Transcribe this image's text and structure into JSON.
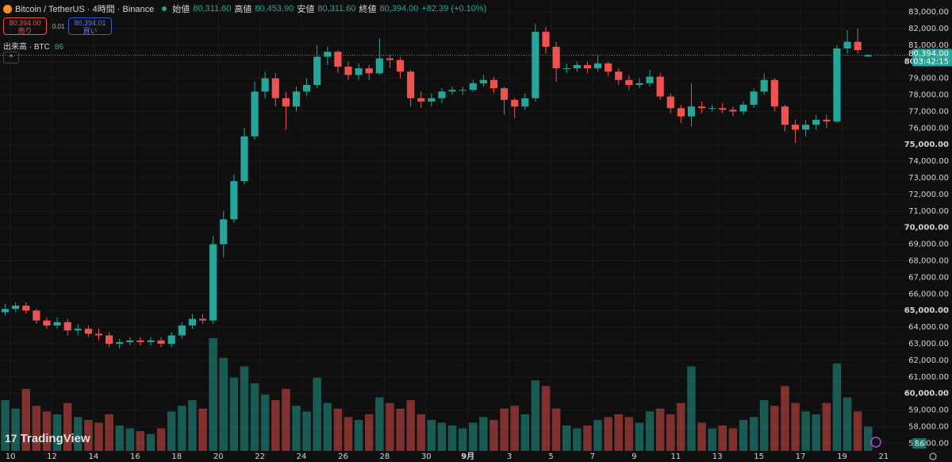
{
  "header": {
    "symbol": "Bitcoin / TetherUS · 4時間 · Binance",
    "open_label": "始値",
    "open": "80,311.60",
    "high_label": "高値",
    "high": "80,453.90",
    "low_label": "安値",
    "low": "80,311.60",
    "close_label": "終値",
    "close": "80,394.00",
    "change": "+82.39 (+0.10%)"
  },
  "order": {
    "sell_price": "80,394.00",
    "sell_label": "売り",
    "spread": "0.01",
    "buy_price": "80,394.01",
    "buy_label": "買い"
  },
  "volume_title": "出来高 · BTC",
  "logo": "TradingView",
  "chart_data": {
    "type": "candlestick",
    "up_color": "#26a69a",
    "down_color": "#ef5350",
    "open": [
      64900,
      65100,
      65300,
      65000,
      64400,
      64100,
      64300,
      63800,
      63900,
      63600,
      63500,
      63000,
      63100,
      63200,
      63100,
      63200,
      63000,
      63500,
      64100,
      64500,
      64400,
      69000,
      70500,
      72800,
      75500,
      78200,
      79000,
      77800,
      77300,
      78200,
      78600,
      80300,
      80600,
      79700,
      79200,
      79600,
      79300,
      80200,
      80100,
      79400,
      77800,
      77600,
      77800,
      78200,
      78300,
      78300,
      78700,
      78900,
      78400,
      77700,
      77300,
      77800,
      81800,
      80900,
      79600,
      79600,
      79800,
      79600,
      79900,
      79400,
      78900,
      78600,
      78700,
      79100,
      77900,
      77200,
      76700,
      77300,
      77200,
      77200,
      77100,
      77000,
      77400,
      78200,
      78900,
      77300,
      76200,
      75900,
      76200,
      76500,
      76400,
      80800,
      81200,
      80311.6
    ],
    "high": [
      65400,
      65500,
      65500,
      65100,
      64600,
      64600,
      64500,
      64200,
      64100,
      63900,
      63700,
      63300,
      63400,
      63400,
      63400,
      63400,
      63700,
      64300,
      64800,
      64800,
      69500,
      71000,
      73200,
      76000,
      78800,
      79400,
      79300,
      78200,
      78500,
      79000,
      81000,
      80900,
      80700,
      80000,
      79900,
      79800,
      81400,
      80400,
      80300,
      79500,
      78200,
      78100,
      78400,
      78500,
      78500,
      78900,
      79200,
      79100,
      78500,
      77800,
      78100,
      82300,
      82100,
      81200,
      79900,
      80000,
      80000,
      80400,
      80000,
      79600,
      79200,
      79000,
      79500,
      79300,
      78100,
      77400,
      78700,
      77600,
      77400,
      77500,
      77300,
      77600,
      78400,
      79300,
      79000,
      77400,
      76500,
      76500,
      76800,
      76800,
      81000,
      81900,
      82000,
      80453.9
    ],
    "low": [
      64700,
      64900,
      64800,
      64200,
      63900,
      63900,
      63500,
      63500,
      63400,
      63200,
      62800,
      62700,
      62900,
      62900,
      62900,
      62800,
      62800,
      63300,
      63900,
      64200,
      64200,
      68200,
      70300,
      72600,
      75300,
      77800,
      77300,
      75900,
      77000,
      77900,
      78400,
      79800,
      79300,
      78900,
      78900,
      78900,
      79200,
      79600,
      79000,
      77300,
      77200,
      77300,
      77500,
      78000,
      78000,
      78200,
      78500,
      78100,
      76800,
      76600,
      77100,
      77600,
      80500,
      78800,
      79300,
      79400,
      79300,
      79400,
      79100,
      78600,
      78300,
      78400,
      78500,
      77700,
      76900,
      76300,
      76100,
      76900,
      77000,
      76900,
      76700,
      76800,
      77200,
      78000,
      77000,
      75800,
      75100,
      75500,
      75900,
      76000,
      76300,
      80500,
      80500,
      80311.6
    ],
    "close": [
      65100,
      65300,
      65000,
      64400,
      64100,
      64300,
      63800,
      63900,
      63600,
      63500,
      63000,
      63100,
      63200,
      63100,
      63200,
      63000,
      63500,
      64100,
      64500,
      64400,
      69000,
      70500,
      72800,
      75500,
      78200,
      79000,
      77800,
      77300,
      78200,
      78600,
      80300,
      80600,
      79700,
      79200,
      79600,
      79300,
      80200,
      80100,
      79400,
      77800,
      77600,
      77800,
      78200,
      78300,
      78300,
      78700,
      78900,
      78400,
      77700,
      77300,
      77800,
      81800,
      80900,
      79600,
      79600,
      79800,
      79600,
      79900,
      79400,
      78900,
      78600,
      78700,
      79100,
      77900,
      77200,
      76700,
      77300,
      77200,
      77200,
      77100,
      77000,
      77400,
      78200,
      78900,
      77300,
      76200,
      75900,
      76200,
      76500,
      76400,
      80800,
      81200,
      80700,
      80394
    ],
    "volume": [
      180,
      150,
      220,
      160,
      140,
      130,
      170,
      120,
      110,
      100,
      130,
      90,
      80,
      70,
      60,
      80,
      140,
      160,
      180,
      150,
      400,
      330,
      260,
      300,
      240,
      200,
      180,
      220,
      160,
      140,
      260,
      170,
      150,
      120,
      110,
      130,
      190,
      170,
      150,
      180,
      130,
      110,
      100,
      90,
      80,
      100,
      120,
      110,
      150,
      160,
      130,
      250,
      230,
      150,
      90,
      80,
      90,
      110,
      120,
      130,
      120,
      100,
      140,
      150,
      130,
      170,
      300,
      100,
      80,
      90,
      80,
      110,
      120,
      180,
      160,
      230,
      170,
      140,
      130,
      170,
      310,
      190,
      140,
      86
    ],
    "vlim": [
      0,
      1600
    ],
    "xlim": [
      0,
      43.8
    ],
    "ylim": [
      56540,
      83720
    ],
    "xticks": [
      {
        "value": 0.5,
        "label": "10"
      },
      {
        "value": 2.5,
        "label": "12"
      },
      {
        "value": 4.5,
        "label": "14"
      },
      {
        "value": 6.5,
        "label": "16"
      },
      {
        "value": 8.5,
        "label": "18"
      },
      {
        "value": 10.5,
        "label": "20"
      },
      {
        "value": 12.5,
        "label": "22"
      },
      {
        "value": 14.5,
        "label": "24"
      },
      {
        "value": 16.5,
        "label": "26"
      },
      {
        "value": 18.5,
        "label": "28"
      },
      {
        "value": 20.5,
        "label": "30"
      },
      {
        "value": 22.5,
        "label": "9月"
      },
      {
        "value": 24.5,
        "label": "3"
      },
      {
        "value": 26.5,
        "label": "5"
      },
      {
        "value": 28.5,
        "label": "7"
      },
      {
        "value": 30.5,
        "label": "9"
      },
      {
        "value": 32.5,
        "label": "11"
      },
      {
        "value": 34.5,
        "label": "13"
      },
      {
        "value": 36.5,
        "label": "15"
      },
      {
        "value": 38.5,
        "label": "17"
      },
      {
        "value": 40.5,
        "label": "19"
      },
      {
        "value": 42.5,
        "label": "21"
      }
    ],
    "yticks": [
      {
        "value": 83000,
        "label": "83,000.00"
      },
      {
        "value": 82000,
        "label": "82,000.00"
      },
      {
        "value": 81000,
        "label": "81,000.00"
      },
      {
        "value": 80000,
        "label": "80,000.00"
      },
      {
        "value": 79000,
        "label": "79,000.00"
      },
      {
        "value": 78000,
        "label": "78,000.00"
      },
      {
        "value": 77000,
        "label": "77,000.00"
      },
      {
        "value": 76000,
        "label": "76,000.00"
      },
      {
        "value": 75000,
        "label": "75,000.00"
      },
      {
        "value": 74000,
        "label": "74,000.00"
      },
      {
        "value": 73000,
        "label": "73,000.00"
      },
      {
        "value": 72000,
        "label": "72,000.00"
      },
      {
        "value": 71000,
        "label": "71,000.00"
      },
      {
        "value": 70000,
        "label": "70,000.00"
      },
      {
        "value": 69000,
        "label": "69,000.00"
      },
      {
        "value": 68000,
        "label": "68,000.00"
      },
      {
        "value": 67000,
        "label": "67,000.00"
      },
      {
        "value": 66000,
        "label": "66,000.00"
      },
      {
        "value": 65000,
        "label": "65,000.00"
      },
      {
        "value": 64000,
        "label": "64,000.00"
      },
      {
        "value": 63000,
        "label": "63,000.00"
      },
      {
        "value": 62000,
        "label": "62,000.00"
      },
      {
        "value": 61000,
        "label": "61,000.00"
      },
      {
        "value": 60000,
        "label": "60,000.00"
      },
      {
        "value": 59000,
        "label": "59,000.00"
      },
      {
        "value": 58000,
        "label": "58,000.00"
      },
      {
        "value": 57000,
        "label": "57,000.00"
      }
    ],
    "last_price": {
      "value": 80394,
      "label": "80,394.00"
    },
    "countdown": "03:42:15"
  }
}
